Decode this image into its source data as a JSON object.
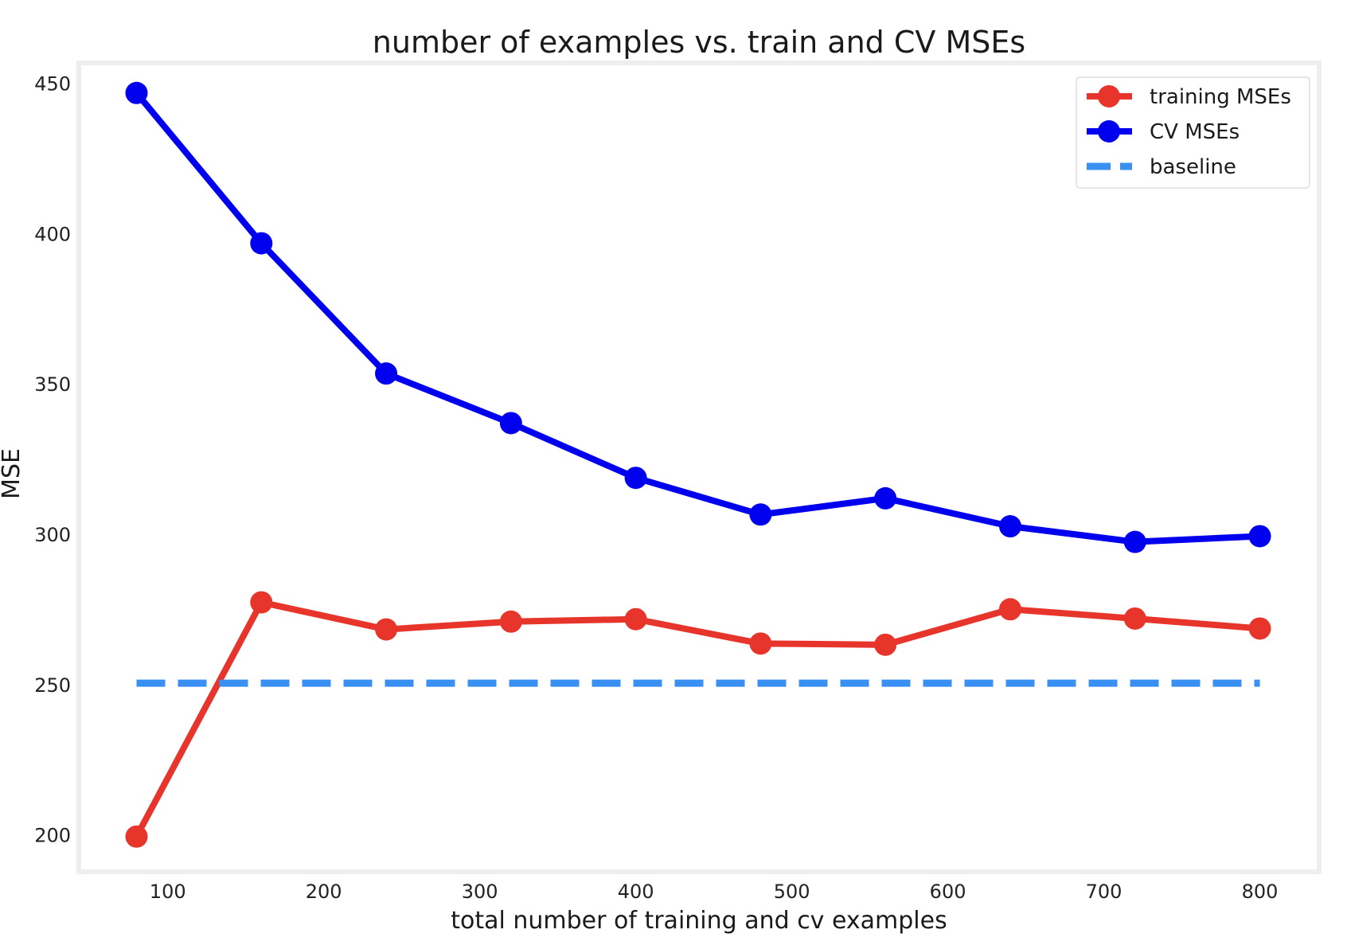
{
  "chart_data": {
    "type": "line",
    "title": "number of examples vs. train and CV MSEs",
    "xlabel": "total number of training and cv examples",
    "ylabel": "MSE",
    "x": [
      80,
      160,
      240,
      320,
      400,
      480,
      560,
      640,
      720,
      800
    ],
    "xlim": [
      43,
      838
    ],
    "ylim": [
      188,
      457
    ],
    "xticks": [
      100,
      200,
      300,
      400,
      500,
      600,
      700,
      800
    ],
    "yticks": [
      200,
      250,
      300,
      350,
      400,
      450
    ],
    "grid": false,
    "legend_position": "upper right",
    "series": [
      {
        "name": "training MSEs",
        "values": [
          199.7,
          277.6,
          268.6,
          271.2,
          272.0,
          263.9,
          263.5,
          275.3,
          272.2,
          268.9
        ],
        "color": "#e8352b",
        "style": "solid-markers"
      },
      {
        "name": "CV MSEs",
        "values": [
          447.0,
          397.0,
          353.7,
          337.2,
          319.0,
          306.8,
          312.2,
          302.9,
          297.7,
          299.6
        ],
        "color": "#0000ee",
        "style": "solid-markers"
      },
      {
        "name": "baseline",
        "values": [
          250.7,
          250.7,
          250.7,
          250.7,
          250.7,
          250.7,
          250.7,
          250.7,
          250.7,
          250.7
        ],
        "color": "#3a8ff2",
        "style": "dashed"
      }
    ]
  }
}
